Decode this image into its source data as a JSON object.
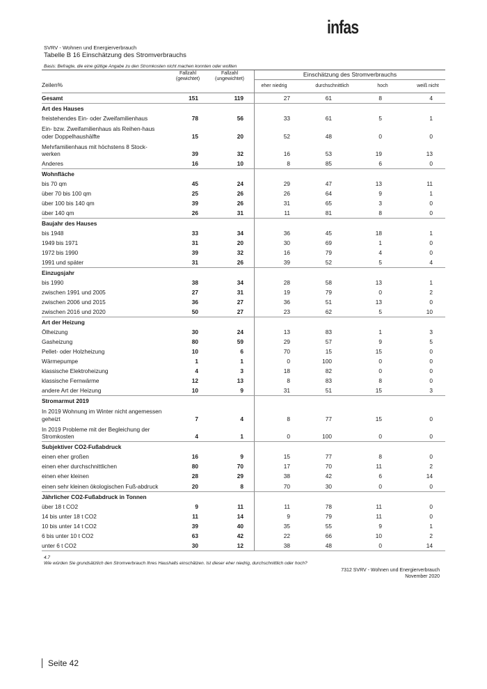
{
  "logo": "infas",
  "subtitle": "SVRV - Wohnen und Energierverbrauch",
  "title": "Tabelle B 16 Einschätzung des Stromverbrauchs",
  "basis": "Basis: Befragte, die eine gültige Angabe zu den Stromkosten nicht machen konnten oder wollten",
  "header": {
    "row_label": "Zeilen%",
    "weighted": "Fallzahl (gewichtet)",
    "unweighted": "Fallzahl (ungewichtet)",
    "group": "Einschätzung des Stromverbrauchs",
    "cols": [
      "eher niedrig",
      "durchschnittlich",
      "hoch",
      "weiß nicht"
    ]
  },
  "rows": [
    {
      "type": "total",
      "label": "Gesamt",
      "v": [
        "151",
        "119",
        "27",
        "61",
        "8",
        "4"
      ]
    },
    {
      "type": "section",
      "label": "Art des Hauses"
    },
    {
      "label": "freistehendes Ein- oder Zweifamilienhaus",
      "v": [
        "78",
        "56",
        "33",
        "61",
        "5",
        "1"
      ]
    },
    {
      "label": "Ein- bzw. Zweifamilienhaus als Reihen-haus oder Doppelhaushälfte",
      "v": [
        "15",
        "20",
        "52",
        "48",
        "0",
        "0"
      ]
    },
    {
      "label": "Mehrfamilienhaus mit höchstens 8 Stock-werken",
      "v": [
        "39",
        "32",
        "16",
        "53",
        "19",
        "13"
      ]
    },
    {
      "label": "Anderes",
      "v": [
        "16",
        "10",
        "8",
        "85",
        "6",
        "0"
      ]
    },
    {
      "type": "section",
      "label": "Wohnfläche"
    },
    {
      "label": "bis 70 qm",
      "v": [
        "45",
        "24",
        "29",
        "47",
        "13",
        "11"
      ]
    },
    {
      "label": "über 70 bis 100 qm",
      "v": [
        "25",
        "26",
        "26",
        "64",
        "9",
        "1"
      ]
    },
    {
      "label": "über 100 bis 140 qm",
      "v": [
        "39",
        "26",
        "31",
        "65",
        "3",
        "0"
      ]
    },
    {
      "label": "über 140 qm",
      "v": [
        "26",
        "31",
        "11",
        "81",
        "8",
        "0"
      ]
    },
    {
      "type": "section",
      "label": "Baujahr des Hauses"
    },
    {
      "label": "bis 1948",
      "v": [
        "33",
        "34",
        "36",
        "45",
        "18",
        "1"
      ]
    },
    {
      "label": "1949 bis 1971",
      "v": [
        "31",
        "20",
        "30",
        "69",
        "1",
        "0"
      ]
    },
    {
      "label": "1972 bis 1990",
      "v": [
        "39",
        "32",
        "16",
        "79",
        "4",
        "0"
      ]
    },
    {
      "label": "1991 und später",
      "v": [
        "31",
        "26",
        "39",
        "52",
        "5",
        "4"
      ]
    },
    {
      "type": "section",
      "label": "Einzugsjahr"
    },
    {
      "label": "bis 1990",
      "v": [
        "38",
        "34",
        "28",
        "58",
        "13",
        "1"
      ]
    },
    {
      "label": "zwischen 1991 und 2005",
      "v": [
        "27",
        "31",
        "19",
        "79",
        "0",
        "2"
      ]
    },
    {
      "label": "zwischen 2006 und 2015",
      "v": [
        "36",
        "27",
        "36",
        "51",
        "13",
        "0"
      ]
    },
    {
      "label": "zwischen 2016 und 2020",
      "v": [
        "50",
        "27",
        "23",
        "62",
        "5",
        "10"
      ]
    },
    {
      "type": "section",
      "label": "Art der Heizung"
    },
    {
      "label": "Ölheizung",
      "v": [
        "30",
        "24",
        "13",
        "83",
        "1",
        "3"
      ]
    },
    {
      "label": "Gasheizung",
      "v": [
        "80",
        "59",
        "29",
        "57",
        "9",
        "5"
      ]
    },
    {
      "label": "Pellet- oder Holzheizung",
      "v": [
        "10",
        "6",
        "70",
        "15",
        "15",
        "0"
      ]
    },
    {
      "label": "Wärmepumpe",
      "v": [
        "1",
        "1",
        "0",
        "100",
        "0",
        "0"
      ]
    },
    {
      "label": "klassische Elektroheizung",
      "v": [
        "4",
        "3",
        "18",
        "82",
        "0",
        "0"
      ]
    },
    {
      "label": "klassische Fernwärme",
      "v": [
        "12",
        "13",
        "8",
        "83",
        "8",
        "0"
      ]
    },
    {
      "label": "andere Art der Heizung",
      "v": [
        "10",
        "9",
        "31",
        "51",
        "15",
        "3"
      ]
    },
    {
      "type": "section",
      "label": "Stromarmut 2019"
    },
    {
      "label": "In 2019 Wohnung im Winter nicht angemessen geheizt",
      "v": [
        "7",
        "4",
        "8",
        "77",
        "15",
        "0"
      ]
    },
    {
      "label": "In 2019 Probleme mit der Begleichung der Stromkosten",
      "v": [
        "4",
        "1",
        "0",
        "100",
        "0",
        "0"
      ]
    },
    {
      "type": "section",
      "label": "Subjektiver CO2-Fußabdruck"
    },
    {
      "label": "einen eher großen",
      "v": [
        "16",
        "9",
        "15",
        "77",
        "8",
        "0"
      ]
    },
    {
      "label": "einen eher durchschnittlichen",
      "v": [
        "80",
        "70",
        "17",
        "70",
        "11",
        "2"
      ]
    },
    {
      "label": "einen eher kleinen",
      "v": [
        "28",
        "29",
        "38",
        "42",
        "6",
        "14"
      ]
    },
    {
      "label": "einen sehr kleinen ökologischen Fuß-abdruck",
      "v": [
        "20",
        "8",
        "70",
        "30",
        "0",
        "0"
      ]
    },
    {
      "type": "section",
      "label": "Jährlicher CO2-Fußabdruck in Tonnen"
    },
    {
      "label": "über 18 t CO2",
      "v": [
        "9",
        "11",
        "11",
        "78",
        "11",
        "0"
      ]
    },
    {
      "label": "14 bis unter 18 t CO2",
      "v": [
        "11",
        "14",
        "9",
        "79",
        "11",
        "0"
      ]
    },
    {
      "label": "10 bis unter 14 t CO2",
      "v": [
        "39",
        "40",
        "35",
        "55",
        "9",
        "1"
      ]
    },
    {
      "label": "6 bis unter 10 t CO2",
      "v": [
        "63",
        "42",
        "22",
        "66",
        "10",
        "2"
      ]
    },
    {
      "label": "unter 6 t CO2",
      "v": [
        "30",
        "12",
        "38",
        "48",
        "0",
        "14"
      ]
    }
  ],
  "footnote_num": "4.7",
  "footnote_question": "Wie würden Sie grundsätzlich den Stromverbrauch Ihres Haushalts einschätzen. Ist dieser eher niedrig, durchschnittlich oder hoch?",
  "source_line1": "7312 SVRV - Wohnen und Energierverbrauch",
  "source_line2": "November 2020",
  "page_label": "Seite 42"
}
